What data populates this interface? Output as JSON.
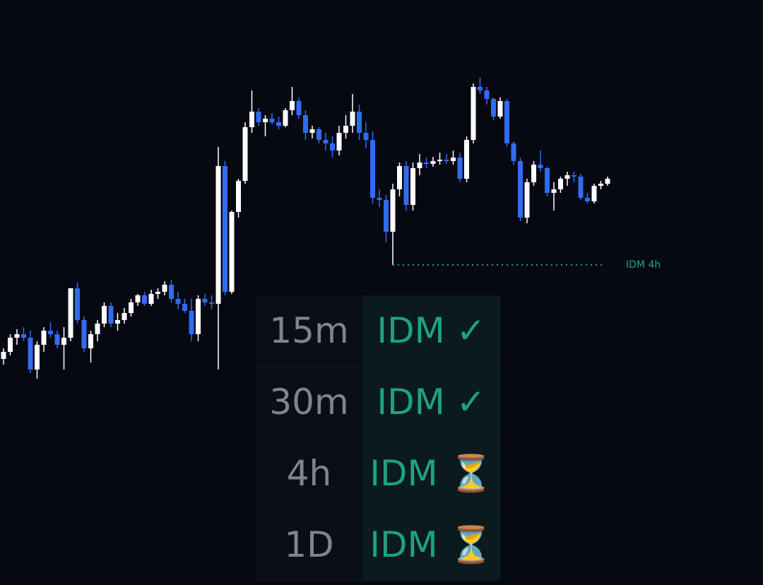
{
  "chart_data": {
    "type": "candlestick",
    "up_color": "#ffffff",
    "down_color": "#2f6cf0",
    "ylim": [
      0,
      828
    ],
    "open": [
      320,
      330,
      350,
      355,
      350,
      305,
      340,
      360,
      355,
      340,
      350,
      420,
      375,
      335,
      355,
      370,
      395,
      370,
      375,
      385,
      400,
      410,
      398,
      412,
      415,
      425,
      405,
      398,
      388,
      355,
      405,
      400,
      398,
      593,
      415,
      528,
      572,
      648,
      670,
      655,
      660,
      655,
      650,
      672,
      685,
      665,
      640,
      645,
      630,
      625,
      615,
      640,
      650,
      670,
      640,
      630,
      548,
      545,
      500,
      560,
      593,
      538,
      590,
      598,
      596,
      600,
      602,
      600,
      605,
      575,
      630,
      705,
      700,
      688,
      663,
      685,
      625,
      600,
      520,
      570,
      595,
      590,
      555,
      560,
      575,
      580,
      578,
      548,
      543,
      565,
      568
    ],
    "high": [
      335,
      355,
      362,
      365,
      360,
      345,
      365,
      372,
      360,
      365,
      420,
      428,
      380,
      360,
      375,
      400,
      400,
      385,
      392,
      405,
      412,
      415,
      418,
      420,
      430,
      432,
      415,
      405,
      405,
      410,
      412,
      410,
      620,
      600,
      530,
      575,
      655,
      700,
      675,
      665,
      668,
      663,
      675,
      705,
      690,
      672,
      650,
      648,
      640,
      635,
      650,
      665,
      695,
      680,
      655,
      642,
      560,
      552,
      568,
      598,
      600,
      598,
      610,
      605,
      606,
      612,
      610,
      615,
      612,
      635,
      710,
      718,
      705,
      690,
      690,
      688,
      628,
      605,
      575,
      600,
      615,
      592,
      570,
      578,
      585,
      585,
      582,
      555,
      568,
      572,
      578
    ],
    "low": [
      312,
      325,
      340,
      345,
      300,
      292,
      330,
      350,
      335,
      305,
      345,
      370,
      330,
      315,
      345,
      365,
      365,
      360,
      370,
      380,
      395,
      395,
      395,
      405,
      410,
      400,
      390,
      385,
      345,
      345,
      395,
      390,
      305,
      410,
      412,
      520,
      568,
      640,
      650,
      635,
      652,
      645,
      648,
      665,
      660,
      630,
      632,
      625,
      615,
      605,
      608,
      632,
      640,
      630,
      618,
      540,
      535,
      485,
      453,
      550,
      530,
      530,
      580,
      590,
      592,
      595,
      596,
      595,
      570,
      570,
      625,
      695,
      680,
      658,
      660,
      620,
      595,
      515,
      512,
      565,
      585,
      550,
      530,
      555,
      565,
      570,
      545,
      540,
      540,
      560,
      565
    ],
    "close": [
      330,
      350,
      355,
      350,
      305,
      340,
      360,
      355,
      340,
      350,
      420,
      375,
      335,
      355,
      370,
      395,
      370,
      375,
      385,
      400,
      410,
      398,
      412,
      415,
      425,
      405,
      398,
      388,
      355,
      405,
      400,
      398,
      593,
      415,
      528,
      572,
      648,
      670,
      655,
      660,
      655,
      650,
      672,
      685,
      665,
      640,
      645,
      630,
      625,
      615,
      640,
      650,
      670,
      640,
      630,
      548,
      545,
      500,
      560,
      593,
      538,
      590,
      598,
      596,
      600,
      602,
      600,
      605,
      575,
      630,
      705,
      700,
      688,
      663,
      685,
      625,
      600,
      520,
      570,
      595,
      590,
      555,
      560,
      575,
      580,
      578,
      548,
      543,
      565,
      568,
      575
    ],
    "level": {
      "label": "IDM 4h",
      "value": 453,
      "start": 58,
      "color": "#1ea584"
    }
  },
  "table": {
    "rows": [
      [
        "15m",
        "IDM ✓"
      ],
      [
        "30m",
        "IDM ✓"
      ],
      [
        "4h",
        "IDM ⏳"
      ],
      [
        "1D",
        "IDM ⏳"
      ]
    ]
  }
}
